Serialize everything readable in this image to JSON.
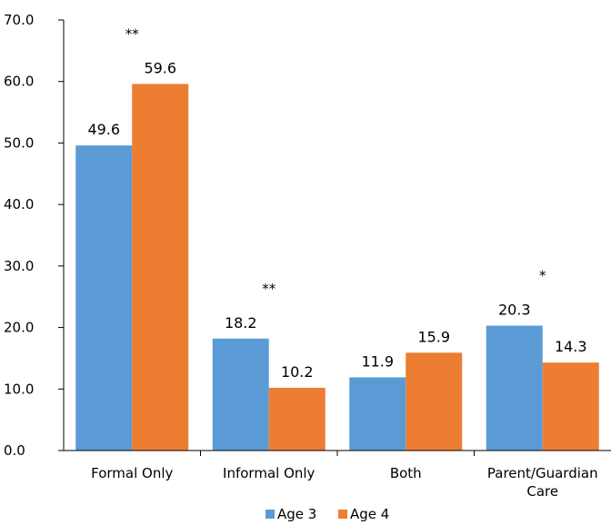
{
  "chart_data": {
    "type": "bar",
    "categories": [
      "Formal Only",
      "Informal Only",
      "Both",
      "Parent/Guardian Care"
    ],
    "category_lines": [
      [
        "Formal Only"
      ],
      [
        "Informal Only"
      ],
      [
        "Both"
      ],
      [
        "Parent/Guardian",
        "Care"
      ]
    ],
    "series": [
      {
        "name": "Age 3",
        "values": [
          49.6,
          18.2,
          11.9,
          20.3
        ],
        "color": "#5B9BD5"
      },
      {
        "name": "Age 4",
        "values": [
          59.6,
          10.2,
          15.9,
          14.3
        ],
        "color": "#ED7D31"
      }
    ],
    "data_labels": [
      [
        "49.6",
        "18.2",
        "11.9",
        "20.3"
      ],
      [
        "59.6",
        "10.2",
        "15.9",
        "14.3"
      ]
    ],
    "significance_markers": [
      "**",
      "**",
      "",
      "*"
    ],
    "yticks": [
      "0.0",
      "10.0",
      "20.0",
      "30.0",
      "40.0",
      "50.0",
      "60.0",
      "70.0"
    ],
    "ylim": [
      0,
      70
    ],
    "title": "",
    "xlabel": "",
    "ylabel": "",
    "grid": false,
    "legend_position": "bottom"
  }
}
